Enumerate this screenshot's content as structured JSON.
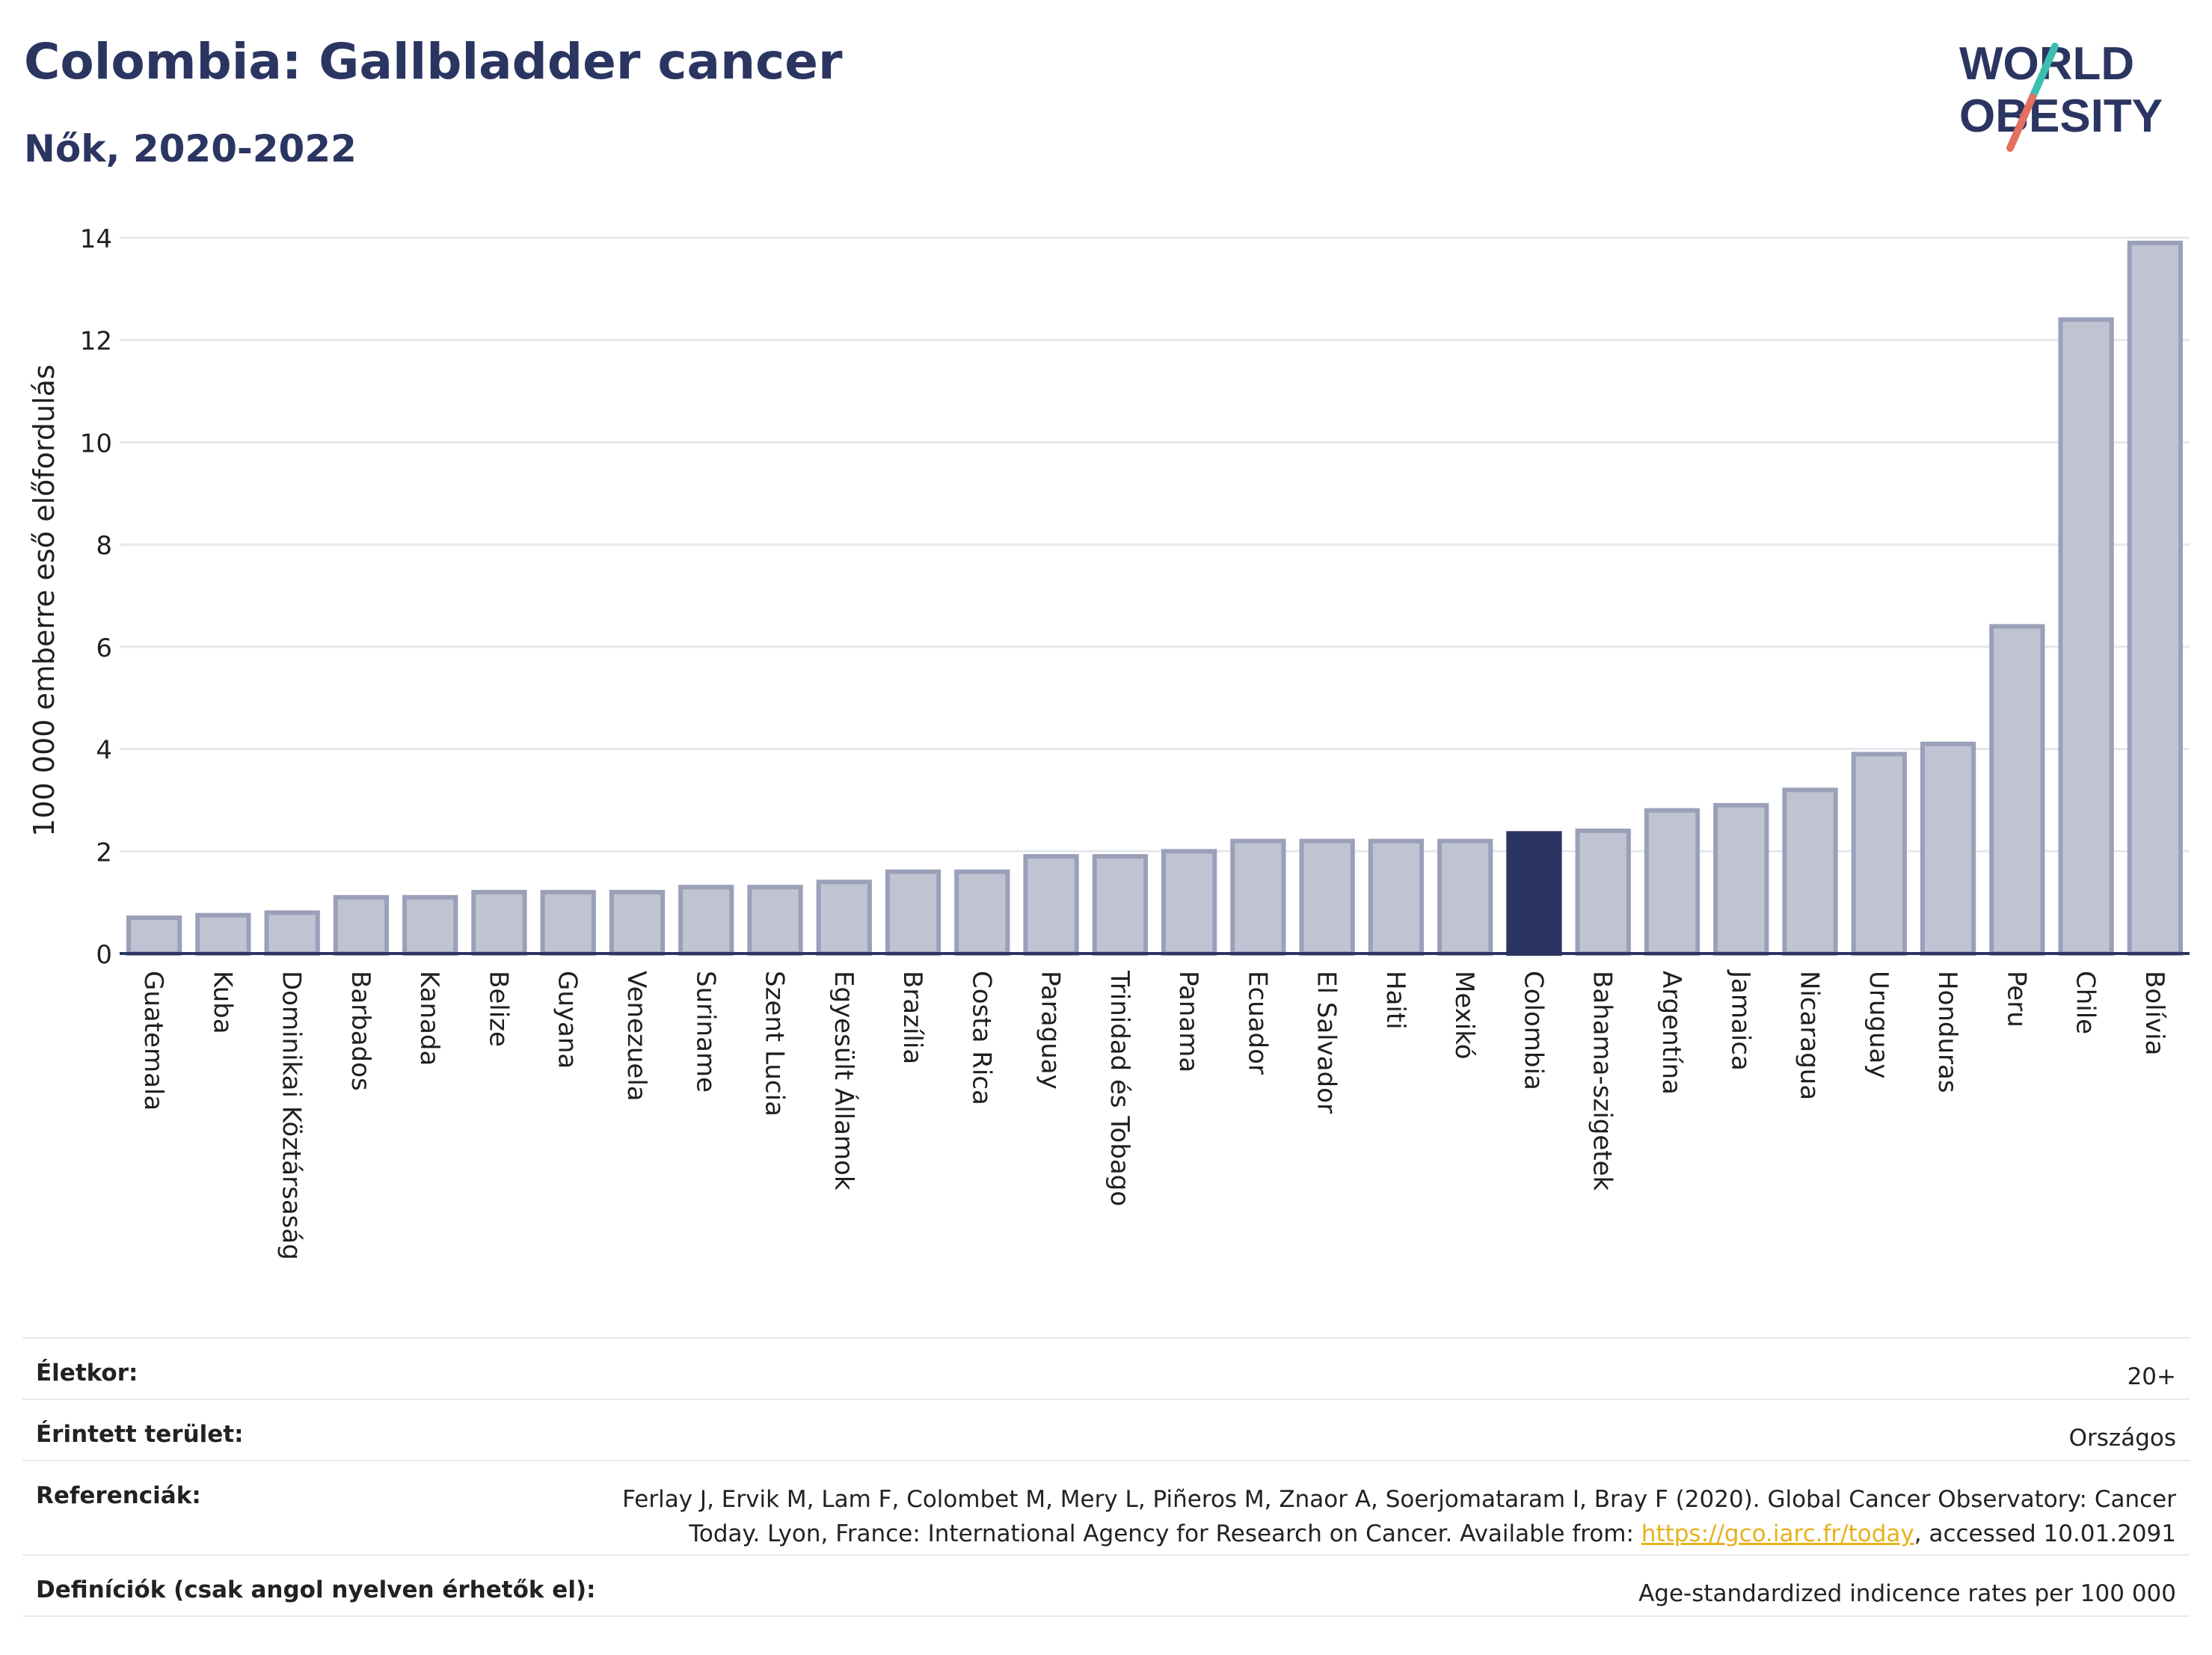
{
  "header": {
    "title": "Colombia: Gallbladder cancer",
    "subtitle": "Nők, 2020-2022"
  },
  "logo": {
    "line1": "WORLD",
    "line2": "OBESITY",
    "icon": "world-obesity-logo"
  },
  "colors": {
    "highlight": "#2b3561",
    "bar": "#c0c4d2",
    "bar_border": "#9aa0b8",
    "title": "#2b3561",
    "link": "#e6b21d"
  },
  "chart_data": {
    "type": "bar",
    "ylabel": "100 000 emberre eső előfordulás",
    "xlabel": "",
    "ylim": [
      0,
      14
    ],
    "yticks": [
      0,
      2,
      4,
      6,
      8,
      10,
      12,
      14
    ],
    "grid": true,
    "highlight_category": "Colombia",
    "categories": [
      "Guatemala",
      "Kuba",
      "Dominikai Köztársaság",
      "Barbados",
      "Kanada",
      "Belize",
      "Guyana",
      "Venezuela",
      "Suriname",
      "Szent Lucia",
      "Egyesült Államok",
      "Brazília",
      "Costa Rica",
      "Paraguay",
      "Trinidad és Tobago",
      "Panama",
      "Ecuador",
      "El Salvador",
      "Haiti",
      "Mexikó",
      "Colombia",
      "Bahama-szigetek",
      "Argentína",
      "Jamaica",
      "Nicaragua",
      "Uruguay",
      "Honduras",
      "Peru",
      "Chile",
      "Bolívia"
    ],
    "values": [
      0.7,
      0.75,
      0.8,
      1.1,
      1.1,
      1.2,
      1.2,
      1.2,
      1.3,
      1.3,
      1.4,
      1.6,
      1.6,
      1.9,
      1.9,
      2.0,
      2.2,
      2.2,
      2.2,
      2.2,
      2.35,
      2.4,
      2.8,
      2.9,
      3.2,
      3.9,
      4.1,
      6.4,
      12.4,
      13.9
    ]
  },
  "info": {
    "age_label": "Életkor:",
    "age_value": "20+",
    "area_label": "Érintett terület:",
    "area_value": "Országos",
    "ref_label": "Referenciák:",
    "ref_line1": "Ferlay J, Ervik M, Lam F, Colombet M, Mery L, Piñeros M, Znaor A, Soerjomataram I, Bray F (2020). Global Cancer Observatory: Cancer",
    "ref_line2_pre": "Today. Lyon, France: International Agency for Research on Cancer. Available from: ",
    "ref_link": "https://gco.iarc.fr/today",
    "ref_line2_post": ", accessed 10.01.2091",
    "def_label": "Definíciók (csak angol nyelven érhetők el):",
    "def_value": "Age-standardized indicence rates per 100 000"
  }
}
